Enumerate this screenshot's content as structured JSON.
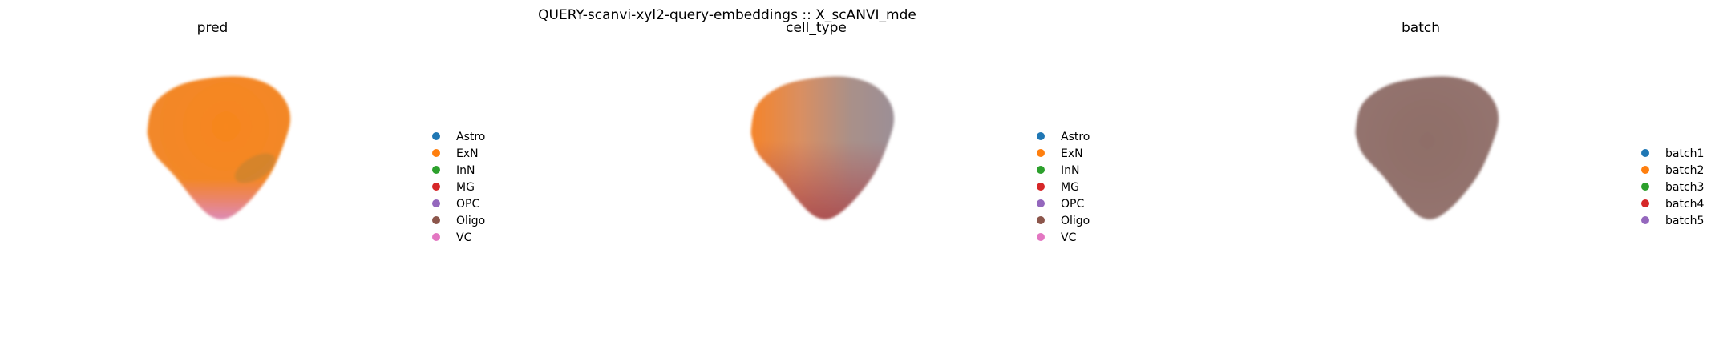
{
  "figure": {
    "suptitle": "QUERY-scanvi-xyl2-query-embeddings :: X_scANVI_mde"
  },
  "chart_data": [
    {
      "type": "scatter",
      "title": "pred",
      "legend_position": "right",
      "axes_visible": false,
      "grid": false,
      "categories": [
        "Astro",
        "ExN",
        "InN",
        "MG",
        "OPC",
        "Oligo",
        "VC"
      ],
      "colors": [
        "#1f77b4",
        "#ff7f0e",
        "#2ca02c",
        "#d62728",
        "#9467bd",
        "#8c564b",
        "#e377c2"
      ],
      "dominant": "ExN"
    },
    {
      "type": "scatter",
      "title": "cell_type",
      "legend_position": "right",
      "axes_visible": false,
      "grid": false,
      "categories": [
        "Astro",
        "ExN",
        "InN",
        "MG",
        "OPC",
        "Oligo",
        "VC"
      ],
      "colors": [
        "#1f77b4",
        "#ff7f0e",
        "#2ca02c",
        "#d62728",
        "#9467bd",
        "#8c564b",
        "#e377c2"
      ],
      "dominant": "mixed"
    },
    {
      "type": "scatter",
      "title": "batch",
      "legend_position": "right",
      "axes_visible": false,
      "grid": false,
      "categories": [
        "batch1",
        "batch2",
        "batch3",
        "batch4",
        "batch5"
      ],
      "colors": [
        "#1f77b4",
        "#ff7f0e",
        "#2ca02c",
        "#d62728",
        "#9467bd"
      ],
      "dominant": "mixed"
    }
  ]
}
